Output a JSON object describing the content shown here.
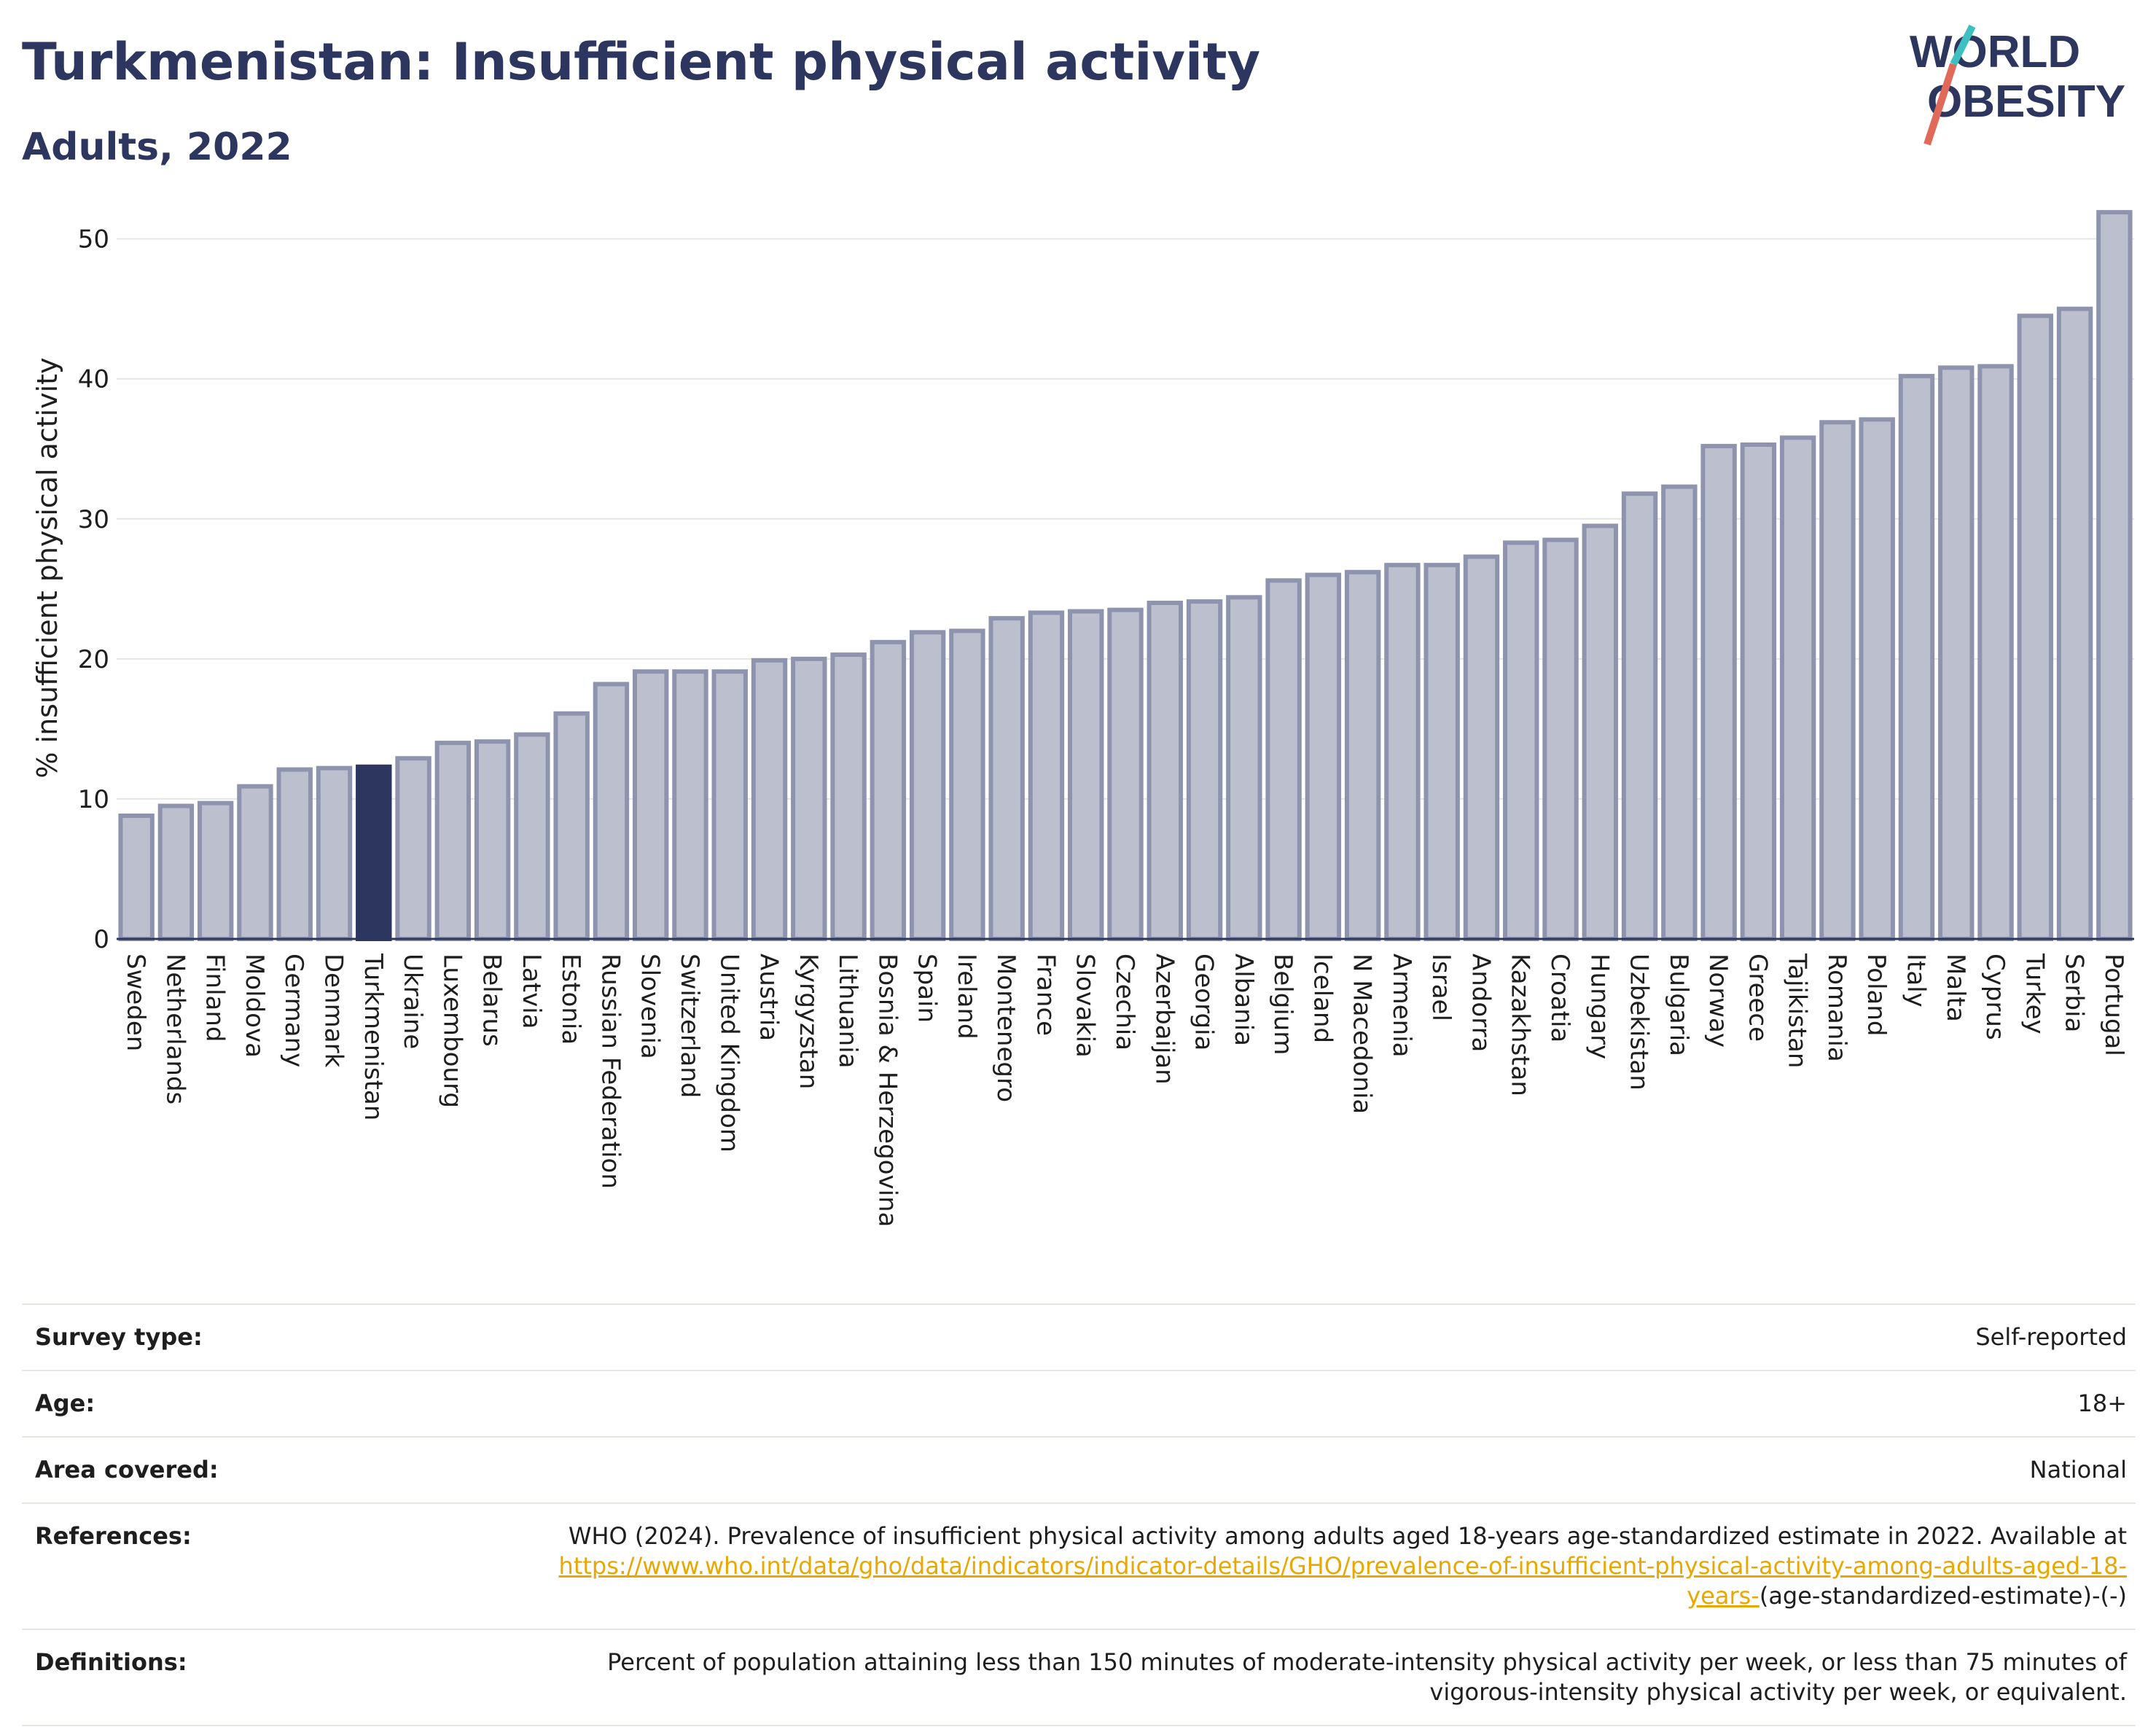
{
  "header": {
    "title": "Turkmenistan: Insufficient physical activity",
    "subtitle": "Adults, 2022"
  },
  "logo": {
    "line1": "WORLD",
    "line2": "OBESITY",
    "name": "world-obesity-logo"
  },
  "colors": {
    "highlight": "#2c365e",
    "bar_fill": "#bcc0ce",
    "bar_stroke": "#8e94ad",
    "grid": "#e6e6e6",
    "title": "#2c365e",
    "link": "#e8a800"
  },
  "chart_data": {
    "type": "bar",
    "title": "Turkmenistan: Insufficient physical activity",
    "subtitle": "Adults, 2022",
    "xlabel": "",
    "ylabel": "% insufficient physical activity",
    "ylim": [
      0,
      53
    ],
    "yticks": [
      0,
      10,
      20,
      30,
      40,
      50
    ],
    "grid": true,
    "highlight": "Turkmenistan",
    "categories": [
      "Sweden",
      "Netherlands",
      "Finland",
      "Moldova",
      "Germany",
      "Denmark",
      "Turkmenistan",
      "Ukraine",
      "Luxembourg",
      "Belarus",
      "Latvia",
      "Estonia",
      "Russian Federation",
      "Slovenia",
      "Switzerland",
      "United Kingdom",
      "Austria",
      "Kyrgyzstan",
      "Lithuania",
      "Bosnia & Herzegovina",
      "Spain",
      "Ireland",
      "Montenegro",
      "France",
      "Slovakia",
      "Czechia",
      "Azerbaijan",
      "Georgia",
      "Albania",
      "Belgium",
      "Iceland",
      "N Macedonia",
      "Armenia",
      "Israel",
      "Andorra",
      "Kazakhstan",
      "Croatia",
      "Hungary",
      "Uzbekistan",
      "Bulgaria",
      "Norway",
      "Greece",
      "Tajikistan",
      "Romania",
      "Poland",
      "Italy",
      "Malta",
      "Cyprus",
      "Turkey",
      "Serbia",
      "Portugal"
    ],
    "values": [
      8.8,
      9.5,
      9.7,
      10.9,
      12.1,
      12.2,
      12.3,
      12.9,
      14.0,
      14.1,
      14.6,
      16.1,
      18.2,
      19.1,
      19.1,
      19.1,
      19.9,
      20.0,
      20.3,
      21.2,
      21.9,
      22.0,
      22.9,
      23.3,
      23.4,
      23.5,
      24.0,
      24.1,
      24.4,
      25.6,
      26.0,
      26.2,
      26.7,
      26.7,
      27.3,
      28.3,
      28.5,
      29.5,
      31.8,
      32.3,
      35.2,
      35.3,
      35.8,
      36.9,
      37.1,
      40.2,
      40.8,
      40.9,
      44.5,
      45.0,
      51.9
    ]
  },
  "info": {
    "survey_type": {
      "label": "Survey type:",
      "value": "Self-reported"
    },
    "age": {
      "label": "Age:",
      "value": "18+"
    },
    "area": {
      "label": "Area covered:",
      "value": "National"
    },
    "references": {
      "label": "References:",
      "text": "WHO (2024). Prevalence of insufficient physical activity among adults aged 18-years age-standardized estimate in 2022. Available at",
      "link": "https://www.who.int/data/gho/data/indicators/indicator-details/GHO/prevalence-of-insufficient-physical-activity-among-adults-aged-18-years-",
      "tail": "(age-standardized-estimate)-(-)"
    },
    "definitions": {
      "label": "Definitions:",
      "value": "Percent of population attaining less than 150 minutes of moderate-intensity physical activity per week, or less than 75 minutes of vigorous-intensity physical activity per week, or equivalent."
    }
  }
}
